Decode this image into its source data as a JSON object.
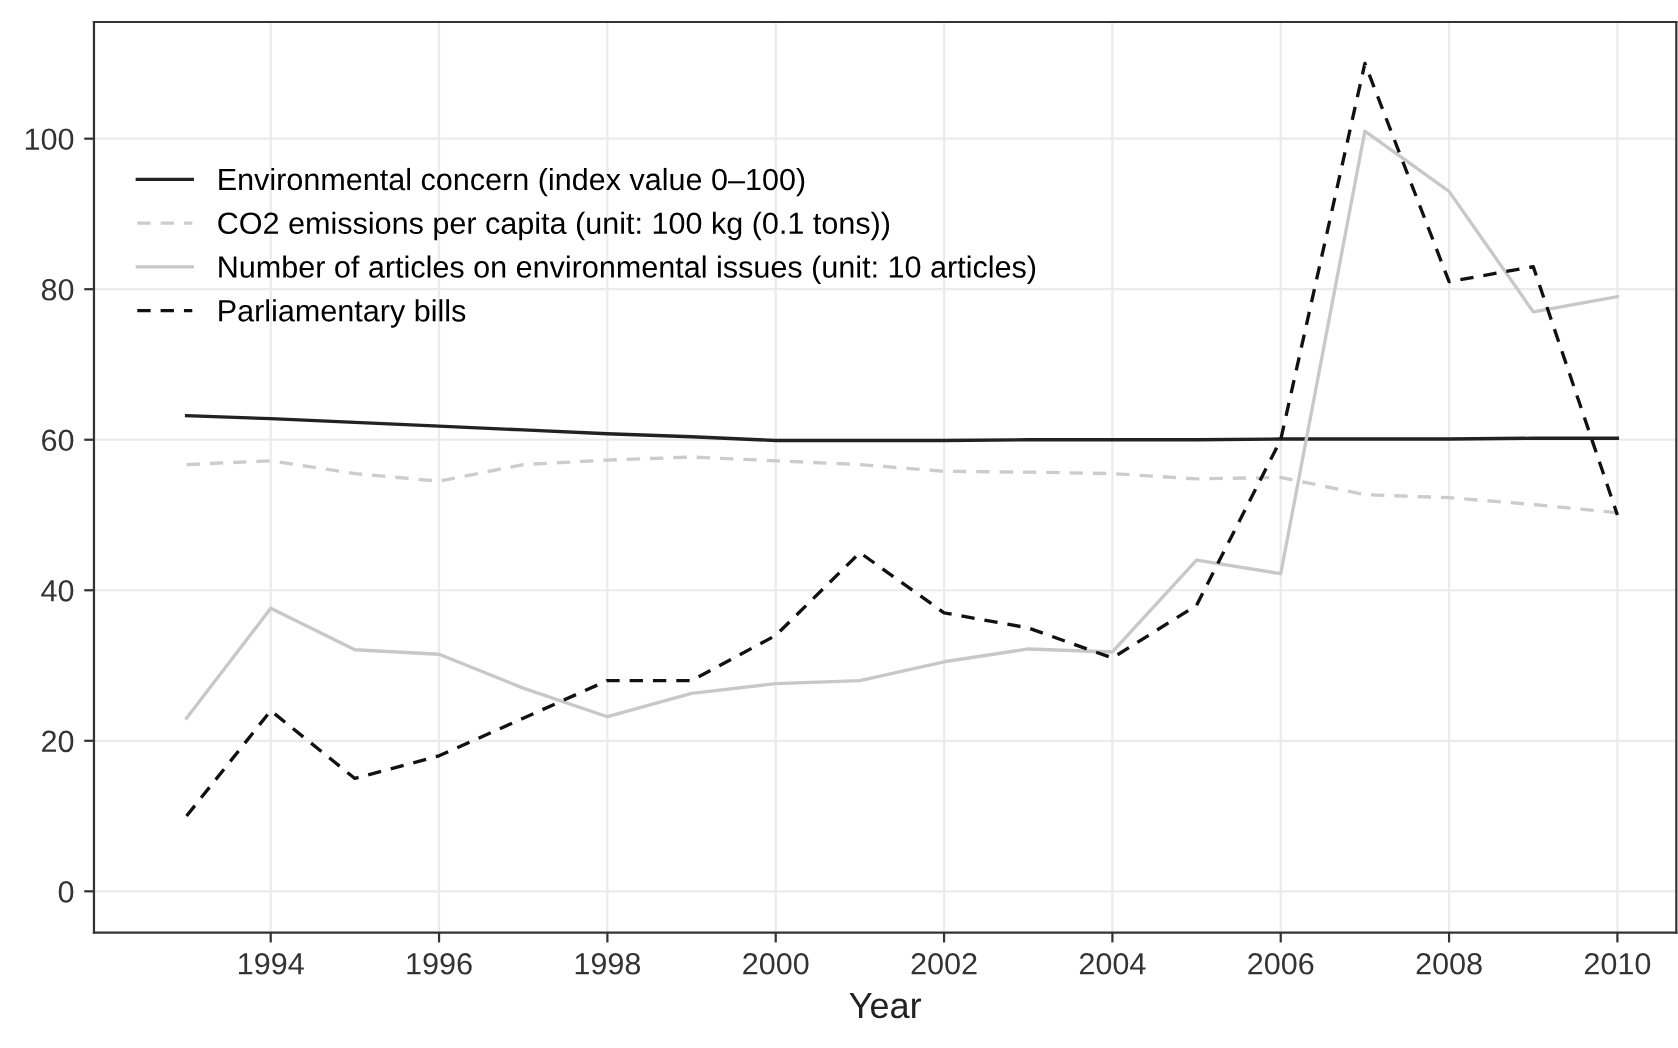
{
  "chart_data": {
    "type": "line",
    "xlabel": "Year",
    "x": [
      1993,
      1994,
      1995,
      1996,
      1997,
      1998,
      1999,
      2000,
      2001,
      2002,
      2003,
      2004,
      2005,
      2006,
      2007,
      2008,
      2009,
      2010
    ],
    "series": [
      {
        "name": "Environmental concern (index value 0–100)",
        "color": "#222222",
        "line_style": "solid",
        "values": [
          63.2,
          62.8,
          62.3,
          61.8,
          61.3,
          60.8,
          60.4,
          59.9,
          59.9,
          59.9,
          60.0,
          60.0,
          60.0,
          60.1,
          60.1,
          60.1,
          60.2,
          60.2
        ]
      },
      {
        "name": "CO2 emissions per capita (unit: 100 kg (0.1 tons))",
        "color": "#cccccc",
        "line_style": "dashed",
        "values": [
          56.7,
          57.2,
          55.5,
          54.5,
          56.7,
          57.3,
          57.7,
          57.2,
          56.7,
          55.8,
          55.7,
          55.5,
          54.8,
          55.0,
          52.7,
          52.3,
          51.4,
          50.3
        ]
      },
      {
        "name": "Number of articles on environmental issues (unit: 10 articles)",
        "color": "#c8c8c8",
        "line_style": "solid",
        "values": [
          23,
          37.6,
          32.1,
          31.5,
          27,
          23.2,
          26.3,
          27.6,
          28,
          30.5,
          32.2,
          31.8,
          44,
          42.2,
          101,
          93,
          77,
          79
        ]
      },
      {
        "name": "Parliamentary bills",
        "color": "#111111",
        "line_style": "dashed",
        "values": [
          10,
          24,
          15,
          18,
          23,
          28,
          28,
          34,
          45,
          37,
          35,
          31,
          38,
          60,
          110,
          81,
          83,
          50
        ]
      }
    ],
    "xlim": [
      1991.9,
      2010.7
    ],
    "ylim": [
      -5.5,
      115.5
    ],
    "xticks": [
      1994,
      1996,
      1998,
      2000,
      2002,
      2004,
      2006,
      2008,
      2010
    ],
    "yticks": [
      0,
      20,
      40,
      60,
      80,
      100
    ],
    "grid": true,
    "legend": "top left"
  }
}
